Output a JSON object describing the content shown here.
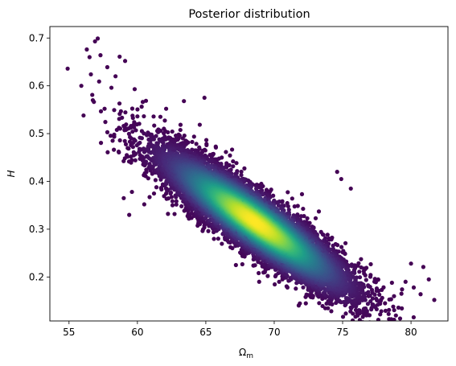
{
  "chart_data": {
    "type": "scatter",
    "title": "Posterior distribution",
    "xlabel": "Ω",
    "xlabel_sub": "m",
    "ylabel": "H",
    "xlim": [
      53.6,
      82.7
    ],
    "ylim": [
      0.108,
      0.724
    ],
    "x_ticks": [
      55,
      60,
      65,
      70,
      75,
      80
    ],
    "y_ticks": [
      0.2,
      0.3,
      0.4,
      0.5,
      0.6,
      0.7
    ],
    "x_tick_labels": [
      "55",
      "60",
      "65",
      "70",
      "75",
      "80"
    ],
    "y_tick_labels": [
      "0.2",
      "0.3",
      "0.4",
      "0.5",
      "0.6",
      "0.7"
    ],
    "grid": false,
    "colormap": "viridis",
    "color_by": "point density",
    "distribution": {
      "center": [
        68.6,
        0.315
      ],
      "sd_x": 3.4,
      "sd_y": 0.072,
      "correlation": -0.9
    },
    "outlier_points": [
      {
        "x": 54.9,
        "y": 0.636
      },
      {
        "x": 56.3,
        "y": 0.676
      },
      {
        "x": 56.5,
        "y": 0.66
      },
      {
        "x": 56.9,
        "y": 0.693
      },
      {
        "x": 57.1,
        "y": 0.699
      },
      {
        "x": 57.3,
        "y": 0.664
      },
      {
        "x": 57.8,
        "y": 0.639
      },
      {
        "x": 56.6,
        "y": 0.624
      },
      {
        "x": 58.7,
        "y": 0.661
      },
      {
        "x": 59.1,
        "y": 0.652
      },
      {
        "x": 55.9,
        "y": 0.6
      },
      {
        "x": 58.1,
        "y": 0.596
      },
      {
        "x": 56.7,
        "y": 0.581
      },
      {
        "x": 57.2,
        "y": 0.609
      },
      {
        "x": 58.4,
        "y": 0.62
      },
      {
        "x": 81.7,
        "y": 0.152
      },
      {
        "x": 80.7,
        "y": 0.164
      },
      {
        "x": 80.2,
        "y": 0.178
      },
      {
        "x": 80.9,
        "y": 0.221
      },
      {
        "x": 80.0,
        "y": 0.228
      },
      {
        "x": 81.3,
        "y": 0.195
      },
      {
        "x": 78.7,
        "y": 0.138
      },
      {
        "x": 78.1,
        "y": 0.145
      },
      {
        "x": 76.9,
        "y": 0.16
      },
      {
        "x": 79.6,
        "y": 0.19
      },
      {
        "x": 79.3,
        "y": 0.165
      },
      {
        "x": 77.8,
        "y": 0.152
      },
      {
        "x": 59.0,
        "y": 0.365
      },
      {
        "x": 59.6,
        "y": 0.378
      },
      {
        "x": 60.5,
        "y": 0.352
      },
      {
        "x": 59.4,
        "y": 0.33
      },
      {
        "x": 64.9,
        "y": 0.575
      },
      {
        "x": 63.4,
        "y": 0.568
      },
      {
        "x": 62.1,
        "y": 0.552
      },
      {
        "x": 74.9,
        "y": 0.405
      },
      {
        "x": 75.6,
        "y": 0.385
      },
      {
        "x": 74.6,
        "y": 0.42
      },
      {
        "x": 68.9,
        "y": 0.19
      },
      {
        "x": 67.2,
        "y": 0.225
      },
      {
        "x": 70.6,
        "y": 0.195
      },
      {
        "x": 57.6,
        "y": 0.552
      },
      {
        "x": 59.8,
        "y": 0.593
      }
    ]
  }
}
